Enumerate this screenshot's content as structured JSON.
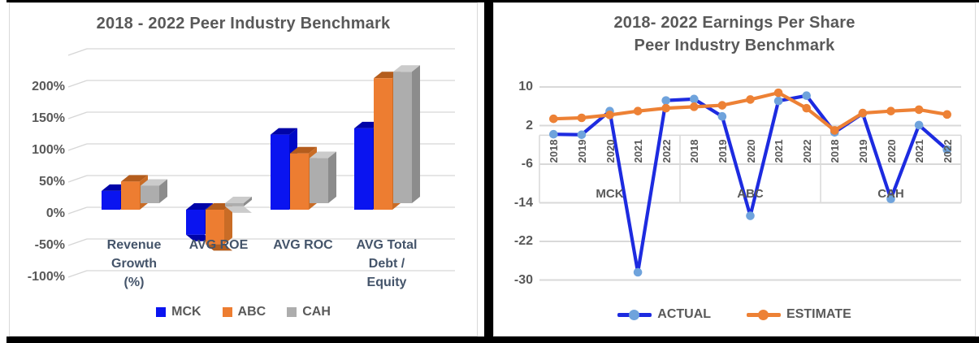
{
  "chart_data": [
    {
      "type": "bar",
      "title": "2018 - 2022 Peer Industry Benchmark",
      "categories": [
        "Revenue Growth (%)",
        "AVG ROE",
        "AVG ROC",
        "AVG Total Debt / Equity"
      ],
      "category_lines": [
        [
          "Revenue",
          "Growth",
          "(%)"
        ],
        [
          "AVG ROE"
        ],
        [
          "AVG ROC"
        ],
        [
          "AVG Total",
          "Debt /",
          "Equity"
        ]
      ],
      "unit": "%",
      "y_tick_labels": [
        "200%",
        "150%",
        "100%",
        "50%",
        "0%",
        "-50%",
        "-100%"
      ],
      "y_tick_values": [
        200,
        150,
        100,
        50,
        0,
        -50,
        -100
      ],
      "ylim": [
        -100,
        250
      ],
      "grid": true,
      "legend_position": "bottom",
      "series": [
        {
          "name": "MCK",
          "color": "#0A14F0",
          "color_top": "#0004A8",
          "color_side": "#0009C6",
          "values": [
            30,
            -40,
            120,
            130
          ]
        },
        {
          "name": "ABC",
          "color": "#ED7D31",
          "color_top": "#B45D1D",
          "color_side": "#C96C26",
          "values": [
            45,
            -55,
            90,
            210
          ]
        },
        {
          "name": "CAH",
          "color": "#ADADAD",
          "color_top": "#CBCBCB",
          "color_side": "#8C8C8C",
          "values": [
            28,
            -5,
            72,
            210
          ]
        }
      ]
    },
    {
      "type": "line",
      "title_line1": "2018- 2022 Earnings Per Share",
      "title_line2": "Peer Industry Benchmark",
      "groups": [
        "MCK",
        "ABC",
        "CAH"
      ],
      "years": [
        "2018",
        "2019",
        "2020",
        "2021",
        "2022"
      ],
      "y_ticks": [
        10,
        2,
        -6,
        -14,
        -22,
        -30
      ],
      "ylim": [
        -30,
        10
      ],
      "grid": true,
      "legend_position": "bottom",
      "series": [
        {
          "name": "ACTUAL",
          "line_color": "#1D2BE0",
          "marker_color": "#6FA3DC",
          "values": [
            0.2,
            0.1,
            5.0,
            -28.4,
            7.2,
            7.5,
            3.9,
            -16.7,
            7.1,
            8.2,
            0.6,
            4.5,
            -13.2,
            2.1,
            -3.0
          ]
        },
        {
          "name": "ESTIMATE",
          "line_color": "#ED8135",
          "marker_color": "#ED8135",
          "values": [
            3.4,
            3.6,
            4.2,
            5.0,
            5.6,
            5.9,
            6.2,
            7.4,
            8.8,
            5.6,
            1.0,
            4.6,
            5.0,
            5.3,
            4.3
          ]
        }
      ]
    }
  ]
}
